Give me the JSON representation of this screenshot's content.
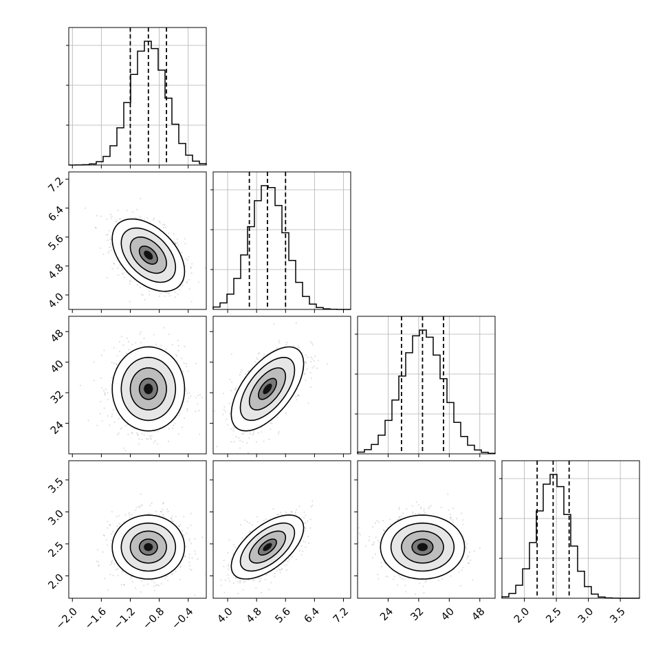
{
  "chart_data": {
    "type": "corner",
    "colors": {
      "line": "#000000",
      "grid": "#b0b0b0",
      "scatter": "#7f7f7f",
      "quantile": "#000000"
    },
    "grid": true,
    "parameters": [
      {
        "range": [
          -2.05,
          -0.15
        ],
        "ticks": [
          -2.0,
          -1.6,
          -1.2,
          -0.8,
          -0.4
        ],
        "tick_labels": [
          "−2.0",
          "−1.6",
          "−1.2",
          "−0.8",
          "−0.4"
        ],
        "center": -0.95,
        "sigma": 0.25,
        "quantiles": [
          -1.2,
          -0.95,
          -0.7
        ]
      },
      {
        "range": [
          3.6,
          7.4
        ],
        "ticks": [
          4.0,
          4.8,
          5.6,
          6.4,
          7.2
        ],
        "tick_labels": [
          "4.0",
          "4.8",
          "5.6",
          "6.4",
          "7.2"
        ],
        "center": 5.1,
        "sigma": 0.5,
        "quantiles": [
          4.6,
          5.1,
          5.6
        ]
      },
      {
        "range": [
          16.0,
          52.0
        ],
        "ticks": [
          24,
          32,
          40,
          48
        ],
        "tick_labels": [
          "24",
          "32",
          "40",
          "48"
        ],
        "center": 33.0,
        "sigma": 5.5,
        "quantiles": [
          27.5,
          33.0,
          38.5
        ]
      },
      {
        "range": [
          1.65,
          3.8
        ],
        "ticks": [
          2.0,
          2.5,
          3.0,
          3.5
        ],
        "tick_labels": [
          "2.0",
          "2.5",
          "3.0",
          "3.5"
        ],
        "center": 2.45,
        "sigma": 0.25,
        "quantiles": [
          2.2,
          2.45,
          2.7
        ]
      }
    ],
    "correlations": [
      {
        "pair": [
          0,
          1
        ],
        "rho": -0.45
      },
      {
        "pair": [
          0,
          2
        ],
        "rho": 0.0
      },
      {
        "pair": [
          0,
          3
        ],
        "rho": 0.0
      },
      {
        "pair": [
          1,
          2
        ],
        "rho": 0.6
      },
      {
        "pair": [
          1,
          3
        ],
        "rho": 0.6
      },
      {
        "pair": [
          2,
          3
        ],
        "rho": 0.0
      }
    ],
    "histogram_bins": 20,
    "contour_levels_sigma": [
      0.5,
      1.0,
      1.5,
      2.0
    ]
  }
}
